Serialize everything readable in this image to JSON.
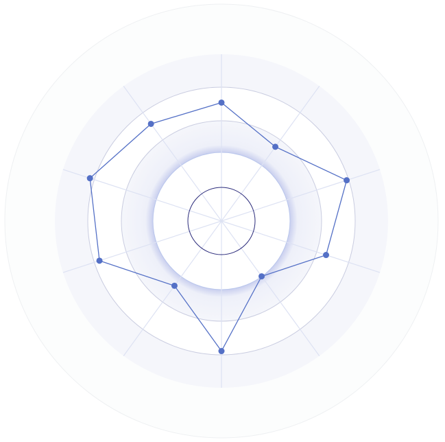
{
  "chart_data": {
    "type": "radar",
    "title": "",
    "axes_count": 10,
    "rlim": [
      0,
      100
    ],
    "grid": true,
    "series": [
      {
        "values": [
          71,
          55,
          79,
          66,
          41,
          78,
          48,
          77,
          83,
          72
        ]
      }
    ],
    "colors": {
      "series": "#5470c6",
      "grid": "#c9cce0",
      "spoke": "#dde2f3",
      "band": "#f5f6fb",
      "outer": "#fcfdfd",
      "inner_ring": "#2a2a7a"
    }
  }
}
